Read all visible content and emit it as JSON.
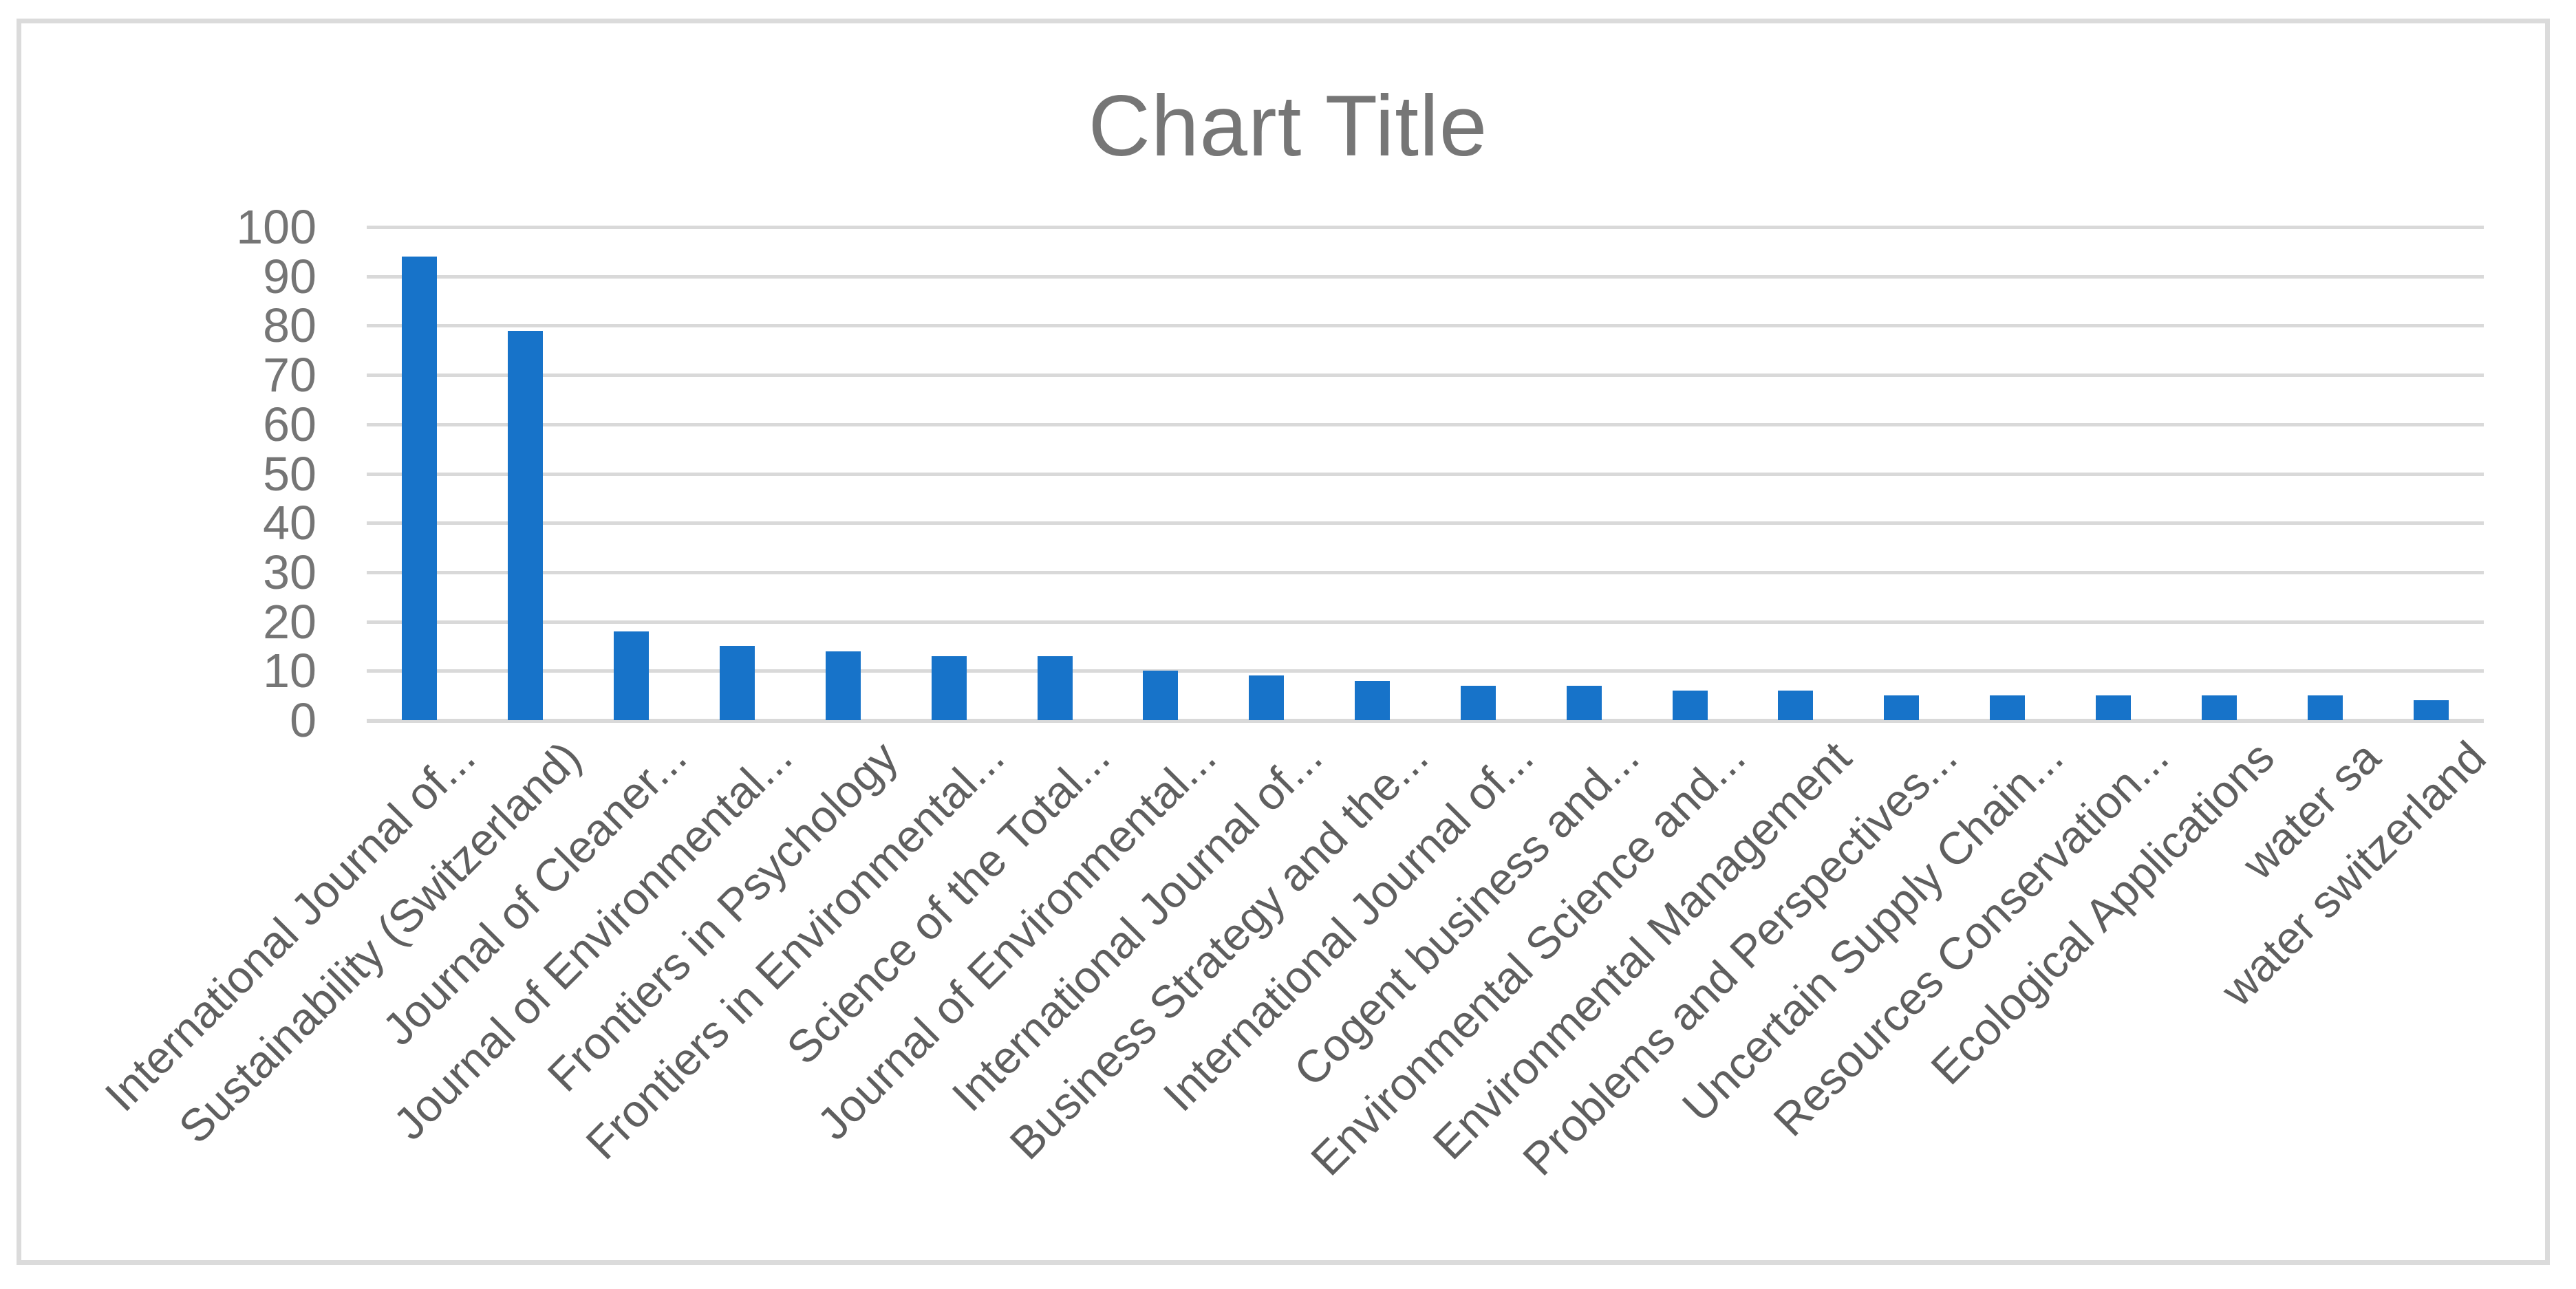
{
  "chart_data": {
    "type": "bar",
    "title": "Chart Title",
    "categories": [
      "International Journal of...",
      "Sustainability (Switzerland)",
      "Journal of Cleaner...",
      "Journal of Environmental...",
      "Frontiers in Psychology",
      "Frontiers in Environmental...",
      "Science of the Total...",
      "Journal of Environmental...",
      "International Journal of...",
      "Business Strategy and the...",
      "International Journal of...",
      "Cogent business and...",
      "Environmental Science and...",
      "Environmental Management",
      "Problems and Perspectives...",
      "Uncertain Supply Chain...",
      "Resources Conservation...",
      "Ecological Applications",
      "water sa",
      "water switzerland"
    ],
    "values": [
      94,
      79,
      18,
      15,
      14,
      13,
      13,
      10,
      9,
      8,
      7,
      7,
      6,
      6,
      5,
      5,
      5,
      5,
      5,
      4
    ],
    "xlabel": "",
    "ylabel": "",
    "ylim": [
      0,
      100
    ],
    "ytick_step": 10,
    "ytick_labels": [
      "0",
      "10",
      "20",
      "30",
      "40",
      "50",
      "60",
      "70",
      "80",
      "90",
      "100"
    ],
    "grid": true,
    "legend_position": "none",
    "bar_color": "#1773C9",
    "gridline_color": "#D9D9D9",
    "axis_text_color": "#757575",
    "title_color": "#767676",
    "frame_border_color": "#DBDBDB"
  }
}
